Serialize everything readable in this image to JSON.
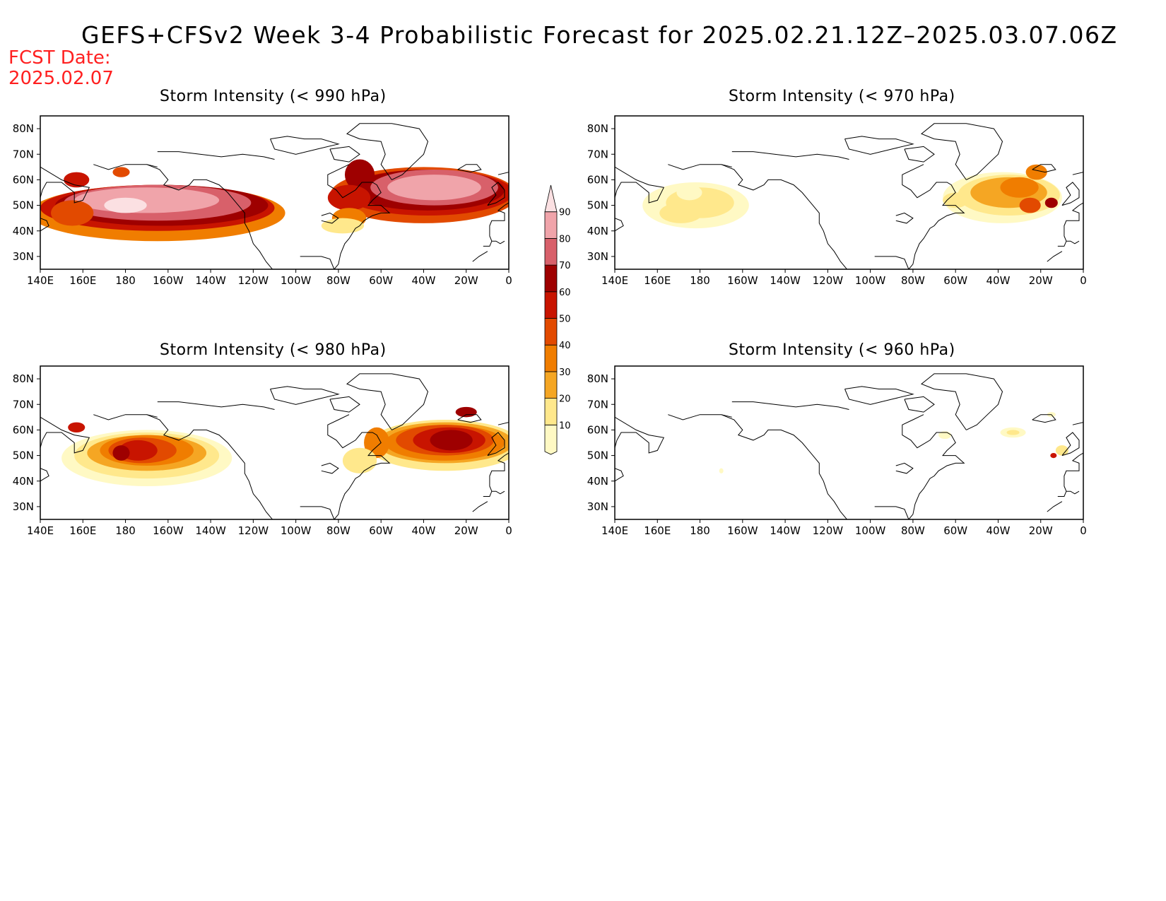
{
  "title": "GEFS+CFSv2 Week 3-4 Probabilistic Forecast for 2025.02.21.12Z–2025.03.07.06Z",
  "fcst_label": "FCST Date:",
  "fcst_date": "2025.02.07",
  "lat_labels": [
    "80N",
    "70N",
    "60N",
    "50N",
    "40N",
    "30N"
  ],
  "lon_labels": [
    "140E",
    "160E",
    "180",
    "160W",
    "140W",
    "120W",
    "100W",
    "80W",
    "60W",
    "40W",
    "20W",
    "0"
  ],
  "panels": [
    {
      "id": "p990",
      "title": "Storm Intensity (< 990 hPa)",
      "threshold": "990 hPa"
    },
    {
      "id": "p970",
      "title": "Storm Intensity (< 970 hPa)",
      "threshold": "970 hPa"
    },
    {
      "id": "p980",
      "title": "Storm Intensity (< 980 hPa)",
      "threshold": "980 hPa"
    },
    {
      "id": "p960",
      "title": "Storm Intensity (< 960 hPa)",
      "threshold": "960 hPa"
    }
  ],
  "colorbar": {
    "levels": [
      10,
      20,
      30,
      40,
      50,
      60,
      70,
      80,
      90
    ],
    "labels": [
      "10",
      "20",
      "30",
      "40",
      "50",
      "60",
      "70",
      "80",
      "90"
    ],
    "colors": [
      "#fff9c4",
      "#ffe88c",
      "#f5a623",
      "#f07d00",
      "#e24a00",
      "#c81400",
      "#9e0000",
      "#d8606a",
      "#f0a4aa",
      "#fbe0e2"
    ]
  },
  "colors": {
    "fcst": "#ff2020",
    "coast": "#000000"
  }
}
